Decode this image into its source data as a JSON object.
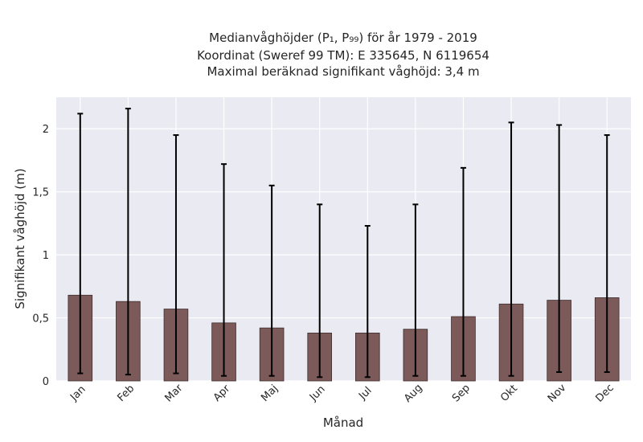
{
  "chart_data": {
    "type": "bar",
    "title": [
      "Medianvåghöjder (P₁, P₉₉) för år 1979 - 2019",
      "Koordinat (Sweref 99 TM): E 335645, N 6119654",
      "Maximal beräknad signifikant våghöjd: 3,4 m"
    ],
    "xlabel": "Månad",
    "ylabel": "Signifikant våghöjd (m)",
    "categories": [
      "Jan",
      "Feb",
      "Mar",
      "Apr",
      "Maj",
      "Jun",
      "Jul",
      "Aug",
      "Sep",
      "Okt",
      "Nov",
      "Dec"
    ],
    "values": [
      0.68,
      0.63,
      0.57,
      0.46,
      0.42,
      0.38,
      0.38,
      0.41,
      0.51,
      0.61,
      0.64,
      0.66
    ],
    "error_low": [
      0.06,
      0.05,
      0.06,
      0.04,
      0.04,
      0.03,
      0.03,
      0.04,
      0.04,
      0.04,
      0.07,
      0.07
    ],
    "error_high": [
      2.12,
      2.16,
      1.95,
      1.72,
      1.55,
      1.4,
      1.23,
      1.4,
      1.69,
      2.05,
      2.03,
      1.95
    ],
    "ylim": [
      0,
      2.25
    ],
    "yticks": [
      0,
      0.5,
      1,
      1.5,
      2
    ],
    "ytick_labels": [
      "0",
      "0,5",
      "1",
      "1,5",
      "2"
    ],
    "grid": true,
    "colors": {
      "bar": "#7d5a5a",
      "bar_edge": "#3d2c2c",
      "error": "#000000",
      "plot_bg": "#eaeaf2",
      "grid": "#ffffff"
    }
  }
}
